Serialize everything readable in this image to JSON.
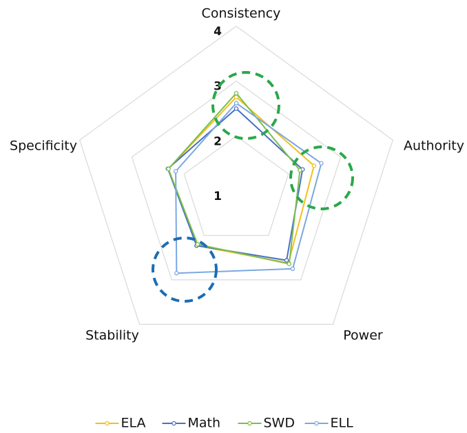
{
  "chart_data": {
    "type": "radar",
    "categories": [
      "Consistency",
      "Authority",
      "Power",
      "Stability",
      "Specificity"
    ],
    "ylim": [
      1,
      4
    ],
    "yticks": [
      1,
      2,
      3,
      4
    ],
    "grid": true,
    "legend": "bottom",
    "series": [
      {
        "name": "ELA",
        "color": "#f2c01c",
        "values": [
          2.71,
          2.49,
          2.62,
          2.23,
          2.3
        ]
      },
      {
        "name": "Math",
        "color": "#4a6fc7",
        "values": [
          2.5,
          2.27,
          2.56,
          2.23,
          2.31
        ]
      },
      {
        "name": "SWD",
        "color": "#7cbf4a",
        "values": [
          2.78,
          2.22,
          2.64,
          2.2,
          2.3
        ]
      },
      {
        "name": "ELL",
        "color": "#7ba7e0",
        "values": [
          2.6,
          2.63,
          2.75,
          2.85,
          2.16
        ]
      }
    ]
  }
}
